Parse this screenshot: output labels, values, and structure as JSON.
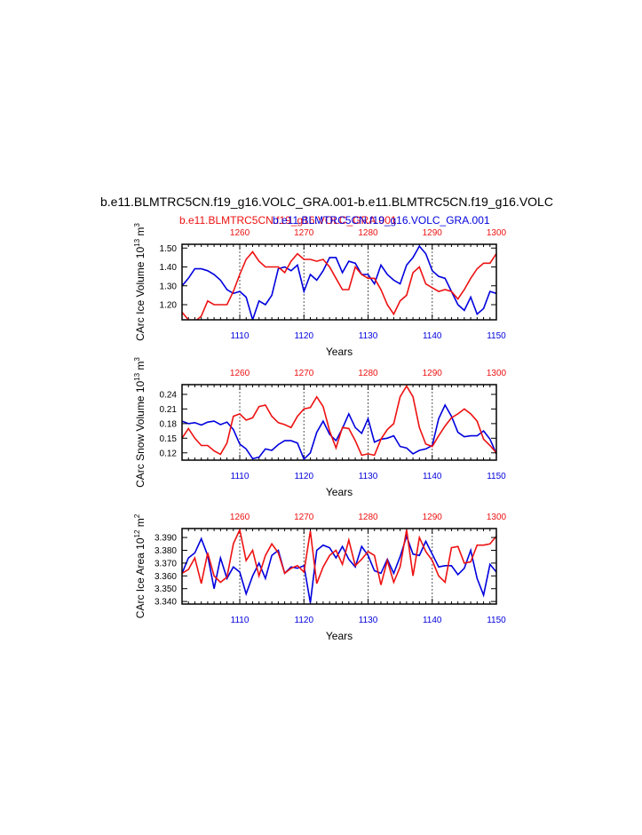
{
  "page": {
    "title": "b.e11.BLMTRC5CN.f19_g16.VOLC_GRA.001-b.e11.BLMTRC5CN.f19_g16.VOLC",
    "legend_red": "b.e11.BLMTRC5CN.f19_g16.VOLC_GRA.001",
    "legend_blue": "b.e11.BLMTRC5CN.f19_g16.VOLC_GRA.001"
  },
  "colors": {
    "red": "#ee1111",
    "blue": "#0000dd",
    "axis": "#000000",
    "grid": "#555555"
  },
  "chart_data": [
    {
      "type": "line",
      "ylabel": "CArc Ice Volume 10",
      "ylabel_sup1": "13",
      "ylabel_mid": " m",
      "ylabel_sup2": "3",
      "xlabel": "Years",
      "bottom_axis": {
        "range": [
          1101,
          1150
        ],
        "ticks": [
          "1110",
          "1120",
          "1130",
          "1140",
          "1150"
        ]
      },
      "top_axis": {
        "range": [
          1251,
          1300
        ],
        "ticks": [
          "1260",
          "1270",
          "1280",
          "1290",
          "1300"
        ]
      },
      "ylim": [
        1.12,
        1.52
      ],
      "yticks": [
        "1.20",
        "1.30",
        "1.40",
        "1.50"
      ],
      "series": [
        {
          "color": "blue",
          "x_start": 1101,
          "values": [
            1.3,
            1.34,
            1.39,
            1.39,
            1.38,
            1.36,
            1.33,
            1.28,
            1.26,
            1.27,
            1.24,
            1.12,
            1.22,
            1.2,
            1.25,
            1.39,
            1.4,
            1.38,
            1.41,
            1.27,
            1.36,
            1.33,
            1.38,
            1.45,
            1.45,
            1.37,
            1.43,
            1.42,
            1.36,
            1.36,
            1.31,
            1.41,
            1.36,
            1.33,
            1.31,
            1.41,
            1.45,
            1.51,
            1.47,
            1.38,
            1.35,
            1.34,
            1.27,
            1.2,
            1.17,
            1.24,
            1.15,
            1.18,
            1.27,
            1.26
          ]
        },
        {
          "color": "red",
          "x_start": 1251,
          "values": [
            1.16,
            1.12,
            1.11,
            1.14,
            1.22,
            1.2,
            1.2,
            1.2,
            1.27,
            1.36,
            1.44,
            1.48,
            1.43,
            1.4,
            1.4,
            1.4,
            1.37,
            1.43,
            1.47,
            1.44,
            1.44,
            1.43,
            1.44,
            1.4,
            1.34,
            1.28,
            1.28,
            1.4,
            1.36,
            1.34,
            1.34,
            1.28,
            1.2,
            1.15,
            1.22,
            1.25,
            1.37,
            1.4,
            1.31,
            1.29,
            1.27,
            1.28,
            1.27,
            1.23,
            1.28,
            1.34,
            1.39,
            1.42,
            1.42,
            1.47
          ]
        }
      ]
    },
    {
      "type": "line",
      "ylabel": "CArc Snow Volume 10",
      "ylabel_sup1": "13",
      "ylabel_mid": " m",
      "ylabel_sup2": "3",
      "xlabel": "Years",
      "bottom_axis": {
        "range": [
          1101,
          1150
        ],
        "ticks": [
          "1110",
          "1120",
          "1130",
          "1140",
          "1150"
        ]
      },
      "top_axis": {
        "range": [
          1251,
          1300
        ],
        "ticks": [
          "1260",
          "1270",
          "1280",
          "1290",
          "1300"
        ]
      },
      "ylim": [
        0.105,
        0.26
      ],
      "yticks": [
        "0.12",
        "0.15",
        "0.18",
        "0.21",
        "0.24"
      ],
      "series": [
        {
          "color": "blue",
          "x_start": 1101,
          "values": [
            0.185,
            0.18,
            0.182,
            0.177,
            0.183,
            0.185,
            0.178,
            0.183,
            0.168,
            0.138,
            0.128,
            0.108,
            0.111,
            0.128,
            0.125,
            0.137,
            0.145,
            0.145,
            0.14,
            0.107,
            0.12,
            0.162,
            0.185,
            0.158,
            0.145,
            0.17,
            0.2,
            0.172,
            0.16,
            0.19,
            0.142,
            0.148,
            0.15,
            0.155,
            0.133,
            0.13,
            0.118,
            0.125,
            0.128,
            0.135,
            0.19,
            0.218,
            0.195,
            0.162,
            0.153,
            0.155,
            0.155,
            0.165,
            0.148,
            0.118
          ]
        },
        {
          "color": "red",
          "x_start": 1251,
          "values": [
            0.15,
            0.17,
            0.15,
            0.135,
            0.135,
            0.124,
            0.117,
            0.14,
            0.195,
            0.2,
            0.187,
            0.192,
            0.215,
            0.218,
            0.195,
            0.182,
            0.178,
            0.172,
            0.195,
            0.21,
            0.213,
            0.235,
            0.215,
            0.165,
            0.13,
            0.172,
            0.17,
            0.145,
            0.115,
            0.118,
            0.115,
            0.148,
            0.168,
            0.18,
            0.235,
            0.257,
            0.235,
            0.172,
            0.138,
            0.133,
            0.155,
            0.175,
            0.192,
            0.2,
            0.21,
            0.2,
            0.185,
            0.148,
            0.135,
            0.12
          ]
        }
      ]
    },
    {
      "type": "line",
      "ylabel": "CArc Ice Area 10",
      "ylabel_sup1": "12",
      "ylabel_mid": " m",
      "ylabel_sup2": "2",
      "xlabel": "Years",
      "bottom_axis": {
        "range": [
          1101,
          1150
        ],
        "ticks": [
          "1110",
          "1120",
          "1130",
          "1140",
          "1150"
        ]
      },
      "top_axis": {
        "range": [
          1251,
          1300
        ],
        "ticks": [
          "1260",
          "1270",
          "1280",
          "1290",
          "1300"
        ]
      },
      "ylim": [
        3.338,
        3.397
      ],
      "yticks": [
        "3.340",
        "3.350",
        "3.360",
        "3.370",
        "3.380",
        "3.390"
      ],
      "series": [
        {
          "color": "blue",
          "x_start": 1101,
          "values": [
            3.362,
            3.374,
            3.378,
            3.389,
            3.376,
            3.35,
            3.374,
            3.358,
            3.367,
            3.363,
            3.346,
            3.36,
            3.37,
            3.358,
            3.376,
            3.38,
            3.362,
            3.367,
            3.366,
            3.368,
            3.339,
            3.38,
            3.384,
            3.382,
            3.374,
            3.383,
            3.373,
            3.367,
            3.383,
            3.376,
            3.364,
            3.362,
            3.373,
            3.362,
            3.375,
            3.391,
            3.377,
            3.376,
            3.387,
            3.377,
            3.367,
            3.368,
            3.368,
            3.361,
            3.366,
            3.38,
            3.358,
            3.345,
            3.369,
            3.363
          ]
        },
        {
          "color": "red",
          "x_start": 1251,
          "values": [
            3.362,
            3.365,
            3.374,
            3.354,
            3.378,
            3.36,
            3.355,
            3.359,
            3.385,
            3.396,
            3.372,
            3.38,
            3.36,
            3.376,
            3.385,
            3.378,
            3.362,
            3.366,
            3.368,
            3.363,
            3.395,
            3.354,
            3.367,
            3.376,
            3.38,
            3.369,
            3.388,
            3.368,
            3.373,
            3.379,
            3.376,
            3.353,
            3.372,
            3.355,
            3.367,
            3.396,
            3.36,
            3.39,
            3.379,
            3.372,
            3.36,
            3.355,
            3.382,
            3.383,
            3.37,
            3.371,
            3.384,
            3.384,
            3.385,
            3.391
          ]
        }
      ]
    }
  ]
}
